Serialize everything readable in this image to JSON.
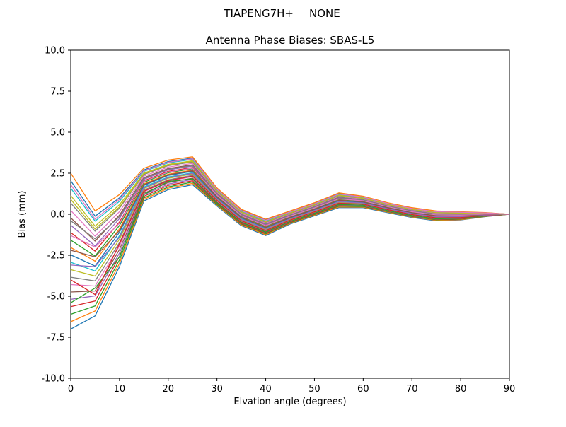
{
  "chart_data": {
    "type": "line",
    "suptitle_left": "TIAPENG7H+",
    "suptitle_right": "NONE",
    "title": "Antenna Phase Biases: SBAS-L5",
    "xlabel": "Elvation angle (degrees)",
    "ylabel": "Bias (mm)",
    "xlim": [
      0,
      90
    ],
    "ylim": [
      -10.0,
      10.0
    ],
    "xticks": [
      0,
      10,
      20,
      30,
      40,
      50,
      60,
      70,
      80,
      90
    ],
    "yticks": [
      -10.0,
      -7.5,
      -5.0,
      -2.5,
      0.0,
      2.5,
      5.0,
      7.5,
      10.0
    ],
    "ytick_labels": [
      "-10.0",
      "-7.5",
      "-5.0",
      "-2.5",
      "0.0",
      "2.5",
      "5.0",
      "7.5",
      "10.0"
    ],
    "grid": false,
    "legend": "none",
    "x": [
      0,
      5,
      10,
      15,
      20,
      25,
      30,
      35,
      40,
      45,
      50,
      55,
      60,
      65,
      70,
      75,
      80,
      85,
      90
    ],
    "line_width": 1.3,
    "series": [
      {
        "color": "#1f77b4",
        "values": [
          -7.0,
          -6.2,
          -3.2,
          0.8,
          1.5,
          1.8,
          0.5,
          -0.7,
          -1.3,
          -0.6,
          -0.1,
          0.4,
          0.4,
          0.1,
          -0.2,
          -0.4,
          -0.35,
          -0.15,
          0.0
        ]
      },
      {
        "color": "#ff7f0e",
        "values": [
          -6.55,
          -5.9,
          -2.99,
          0.9,
          1.59,
          1.88,
          0.55,
          -0.65,
          -1.25,
          -0.56,
          -0.06,
          0.44,
          0.43,
          0.13,
          -0.17,
          -0.37,
          -0.33,
          -0.14,
          0.0
        ]
      },
      {
        "color": "#2ca02c",
        "values": [
          -6.1,
          -5.59,
          -2.78,
          0.99,
          1.67,
          1.96,
          0.6,
          -0.6,
          -1.2,
          -0.52,
          -0.02,
          0.49,
          0.47,
          0.16,
          -0.14,
          -0.34,
          -0.3,
          -0.13,
          0.0
        ]
      },
      {
        "color": "#d62728",
        "values": [
          -5.64,
          -5.29,
          -2.57,
          1.09,
          1.76,
          2.04,
          0.66,
          -0.56,
          -1.16,
          -0.49,
          0.01,
          0.53,
          0.5,
          0.19,
          -0.11,
          -0.31,
          -0.28,
          -0.11,
          0.0
        ]
      },
      {
        "color": "#9467bd",
        "values": [
          -5.19,
          -4.98,
          -2.36,
          1.18,
          1.84,
          2.12,
          0.71,
          -0.51,
          -1.11,
          -0.45,
          0.05,
          0.57,
          0.53,
          0.21,
          -0.09,
          -0.29,
          -0.25,
          -0.1,
          0.0
        ]
      },
      {
        "color": "#8c564b",
        "values": [
          -4.74,
          -4.68,
          -2.15,
          1.28,
          1.93,
          2.2,
          0.76,
          -0.46,
          -1.06,
          -0.41,
          0.09,
          0.61,
          0.57,
          0.24,
          -0.06,
          -0.26,
          -0.23,
          -0.09,
          0.0
        ]
      },
      {
        "color": "#e377c2",
        "values": [
          -4.29,
          -4.38,
          -1.94,
          1.37,
          2.01,
          2.29,
          0.81,
          -0.41,
          -1.01,
          -0.37,
          0.13,
          0.66,
          0.6,
          0.27,
          -0.03,
          -0.23,
          -0.21,
          -0.08,
          0.0
        ]
      },
      {
        "color": "#7f7f7f",
        "values": [
          -3.84,
          -4.07,
          -1.73,
          1.47,
          2.1,
          2.37,
          0.87,
          -0.37,
          -0.97,
          -0.33,
          0.17,
          0.7,
          0.63,
          0.3,
          0.0,
          -0.2,
          -0.18,
          -0.07,
          0.0
        ]
      },
      {
        "color": "#bcbd22",
        "values": [
          -3.38,
          -3.77,
          -1.52,
          1.56,
          2.19,
          2.45,
          0.92,
          -0.32,
          -0.92,
          -0.3,
          0.2,
          0.74,
          0.67,
          0.33,
          0.03,
          -0.17,
          -0.16,
          -0.05,
          0.0
        ]
      },
      {
        "color": "#17becf",
        "values": [
          -2.93,
          -3.46,
          -1.31,
          1.66,
          2.27,
          2.53,
          0.97,
          -0.27,
          -0.87,
          -0.26,
          0.24,
          0.79,
          0.7,
          0.36,
          0.06,
          -0.14,
          -0.13,
          -0.04,
          0.0
        ]
      },
      {
        "color": "#1f77b4",
        "values": [
          -2.48,
          -3.16,
          -1.1,
          1.75,
          2.36,
          2.61,
          1.02,
          -0.22,
          -0.82,
          -0.22,
          0.28,
          0.83,
          0.73,
          0.39,
          0.09,
          -0.11,
          -0.11,
          -0.03,
          0.0
        ]
      },
      {
        "color": "#ff7f0e",
        "values": [
          -2.03,
          -2.86,
          -0.89,
          1.85,
          2.44,
          2.69,
          1.08,
          -0.18,
          -0.78,
          -0.18,
          0.32,
          0.87,
          0.77,
          0.41,
          0.11,
          -0.09,
          -0.09,
          -0.02,
          0.0
        ]
      },
      {
        "color": "#2ca02c",
        "values": [
          -1.58,
          -2.55,
          -0.68,
          1.94,
          2.53,
          2.77,
          1.13,
          -0.13,
          -0.73,
          -0.14,
          0.36,
          0.91,
          0.8,
          0.44,
          0.14,
          -0.06,
          -0.06,
          -0.01,
          0.0
        ]
      },
      {
        "color": "#d62728",
        "values": [
          -1.12,
          -2.25,
          -0.47,
          2.04,
          2.61,
          2.85,
          1.18,
          -0.08,
          -0.68,
          -0.11,
          0.39,
          0.96,
          0.83,
          0.47,
          0.17,
          -0.03,
          -0.04,
          0.01,
          0.0
        ]
      },
      {
        "color": "#9467bd",
        "values": [
          -0.67,
          -1.94,
          -0.26,
          2.13,
          2.7,
          2.93,
          1.23,
          -0.03,
          -0.63,
          -0.07,
          0.43,
          1.0,
          0.87,
          0.5,
          0.2,
          0.0,
          -0.01,
          0.02,
          0.0
        ]
      },
      {
        "color": "#8c564b",
        "values": [
          -0.22,
          -1.64,
          -0.05,
          2.23,
          2.79,
          3.01,
          1.29,
          0.01,
          -0.59,
          -0.03,
          0.47,
          1.04,
          0.9,
          0.53,
          0.23,
          0.03,
          0.01,
          0.03,
          0.0
        ]
      },
      {
        "color": "#e377c2",
        "values": [
          0.23,
          -1.34,
          0.16,
          2.32,
          2.87,
          3.1,
          1.34,
          0.06,
          -0.54,
          0.01,
          0.51,
          1.09,
          0.93,
          0.56,
          0.26,
          0.06,
          0.03,
          0.04,
          0.0
        ]
      },
      {
        "color": "#7f7f7f",
        "values": [
          0.68,
          -1.03,
          0.37,
          2.42,
          2.96,
          3.18,
          1.39,
          0.11,
          -0.49,
          0.05,
          0.55,
          1.13,
          0.97,
          0.59,
          0.29,
          0.09,
          0.06,
          0.05,
          0.0
        ]
      },
      {
        "color": "#bcbd22",
        "values": [
          1.14,
          -0.73,
          0.58,
          2.51,
          3.04,
          3.26,
          1.44,
          0.16,
          -0.44,
          0.08,
          0.58,
          1.17,
          1.0,
          0.61,
          0.31,
          0.11,
          0.08,
          0.07,
          0.0
        ]
      },
      {
        "color": "#17becf",
        "values": [
          1.59,
          -0.42,
          0.79,
          2.61,
          3.13,
          3.34,
          1.5,
          0.2,
          -0.4,
          0.12,
          0.62,
          1.21,
          1.03,
          0.64,
          0.34,
          0.14,
          0.11,
          0.08,
          0.0
        ]
      },
      {
        "color": "#1f77b4",
        "values": [
          2.04,
          -0.12,
          1.0,
          2.7,
          3.21,
          3.42,
          1.55,
          0.25,
          -0.35,
          0.16,
          0.66,
          1.26,
          1.07,
          0.67,
          0.37,
          0.17,
          0.13,
          0.09,
          0.0
        ]
      },
      {
        "color": "#ff7f0e",
        "values": [
          2.5,
          0.2,
          1.2,
          2.8,
          3.3,
          3.5,
          1.6,
          0.3,
          -0.3,
          0.2,
          0.7,
          1.3,
          1.1,
          0.7,
          0.4,
          0.2,
          0.15,
          0.1,
          0.0
        ]
      },
      {
        "color": "#2ca02c",
        "values": [
          -5.4,
          -4.5,
          -2.6,
          1.2,
          2.0,
          2.15,
          0.7,
          -0.5,
          -1.1,
          -0.44,
          0.06,
          0.58,
          0.55,
          0.22,
          -0.08,
          -0.28,
          -0.24,
          -0.1,
          0.0
        ]
      },
      {
        "color": "#d62728",
        "values": [
          -4.0,
          -4.9,
          -1.8,
          1.4,
          2.05,
          2.32,
          0.84,
          -0.4,
          -1.0,
          -0.36,
          0.14,
          0.67,
          0.61,
          0.28,
          -0.02,
          -0.22,
          -0.2,
          -0.08,
          0.0
        ]
      },
      {
        "color": "#9467bd",
        "values": [
          -3.1,
          -3.2,
          -1.4,
          1.6,
          2.23,
          2.49,
          0.94,
          -0.3,
          -0.9,
          -0.28,
          0.22,
          0.76,
          0.68,
          0.34,
          0.04,
          -0.16,
          -0.15,
          -0.05,
          0.0
        ]
      },
      {
        "color": "#8c564b",
        "values": [
          -2.2,
          -2.6,
          -1.0,
          1.8,
          2.4,
          2.65,
          1.05,
          -0.2,
          -0.8,
          -0.2,
          0.3,
          0.85,
          0.75,
          0.4,
          0.1,
          -0.1,
          -0.1,
          -0.02,
          0.0
        ]
      },
      {
        "color": "#e377c2",
        "values": [
          -1.3,
          -2.0,
          -0.55,
          2.0,
          2.57,
          2.81,
          1.15,
          -0.1,
          -0.7,
          -0.12,
          0.38,
          0.93,
          0.82,
          0.46,
          0.15,
          -0.04,
          -0.05,
          0.0,
          0.0
        ]
      },
      {
        "color": "#7f7f7f",
        "values": [
          -0.4,
          -1.5,
          -0.15,
          2.18,
          2.74,
          2.97,
          1.26,
          0.0,
          -0.6,
          -0.05,
          0.45,
          1.02,
          0.88,
          0.51,
          0.21,
          0.01,
          0.0,
          0.02,
          0.0
        ]
      },
      {
        "color": "#bcbd22",
        "values": [
          0.9,
          -0.9,
          0.45,
          2.46,
          3.0,
          3.22,
          1.42,
          0.13,
          -0.47,
          0.07,
          0.57,
          1.15,
          0.98,
          0.6,
          0.3,
          0.1,
          0.07,
          0.06,
          0.0
        ]
      },
      {
        "color": "#e377c2",
        "values": [
          1.8,
          -0.3,
          0.9,
          2.65,
          3.17,
          3.38,
          1.52,
          0.22,
          -0.37,
          0.14,
          0.64,
          1.23,
          1.05,
          0.66,
          0.35,
          0.15,
          0.12,
          0.08,
          0.0
        ]
      }
    ]
  }
}
